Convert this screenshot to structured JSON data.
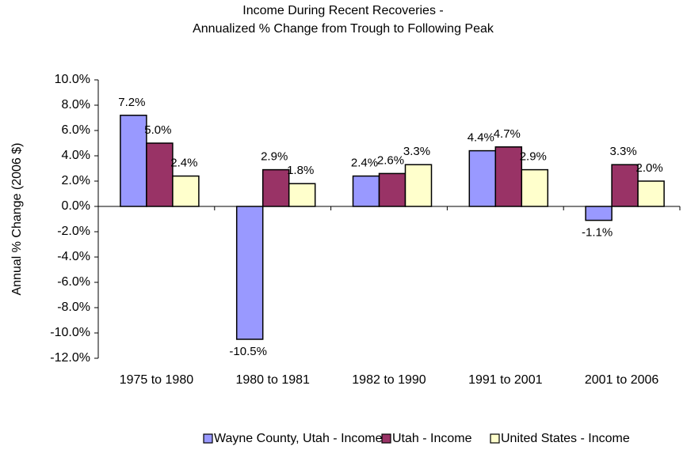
{
  "chart_data": {
    "type": "bar",
    "title": [
      "Income During Recent Recoveries -",
      "Annualized % Change from Trough to Following Peak"
    ],
    "y_axis_label": "Annual % Change (2006 $)",
    "categories": [
      "1975 to 1980",
      "1980 to 1981",
      "1982 to 1990",
      "1991 to 2001",
      "2001 to 2006"
    ],
    "series": [
      {
        "name": "Wayne County, Utah - Income",
        "color": "#9999ff",
        "values": [
          7.2,
          -10.5,
          2.4,
          4.4,
          -1.1
        ],
        "value_labels": [
          "7.2%",
          "-10.5%",
          "2.4%",
          "4.4%",
          "-1.1%"
        ]
      },
      {
        "name": "Utah - Income",
        "color": "#993366",
        "values": [
          5.0,
          2.9,
          2.6,
          4.7,
          3.3
        ],
        "value_labels": [
          "5.0%",
          "2.9%",
          "2.6%",
          "4.7%",
          "3.3%"
        ]
      },
      {
        "name": "United States - Income",
        "color": "#ffffcc",
        "values": [
          2.4,
          1.8,
          3.3,
          2.9,
          2.0
        ],
        "value_labels": [
          "2.4%",
          "1.8%",
          "3.3%",
          "2.9%",
          "2.0%"
        ]
      }
    ],
    "ylim": [
      -12,
      10
    ],
    "yticks": [
      {
        "value": -12,
        "label": "-12.0%"
      },
      {
        "value": -10,
        "label": "-10.0%"
      },
      {
        "value": -8,
        "label": "-8.0%"
      },
      {
        "value": -6,
        "label": "-6.0%"
      },
      {
        "value": -4,
        "label": "-4.0%"
      },
      {
        "value": -2,
        "label": "-2.0%"
      },
      {
        "value": 0,
        "label": "0.0%"
      },
      {
        "value": 2,
        "label": "2.0%"
      },
      {
        "value": 4,
        "label": "4.0%"
      },
      {
        "value": 6,
        "label": "6.0%"
      },
      {
        "value": 8,
        "label": "8.0%"
      },
      {
        "value": 10,
        "label": "10.0%"
      }
    ],
    "grid": false,
    "legend": "bottom"
  }
}
